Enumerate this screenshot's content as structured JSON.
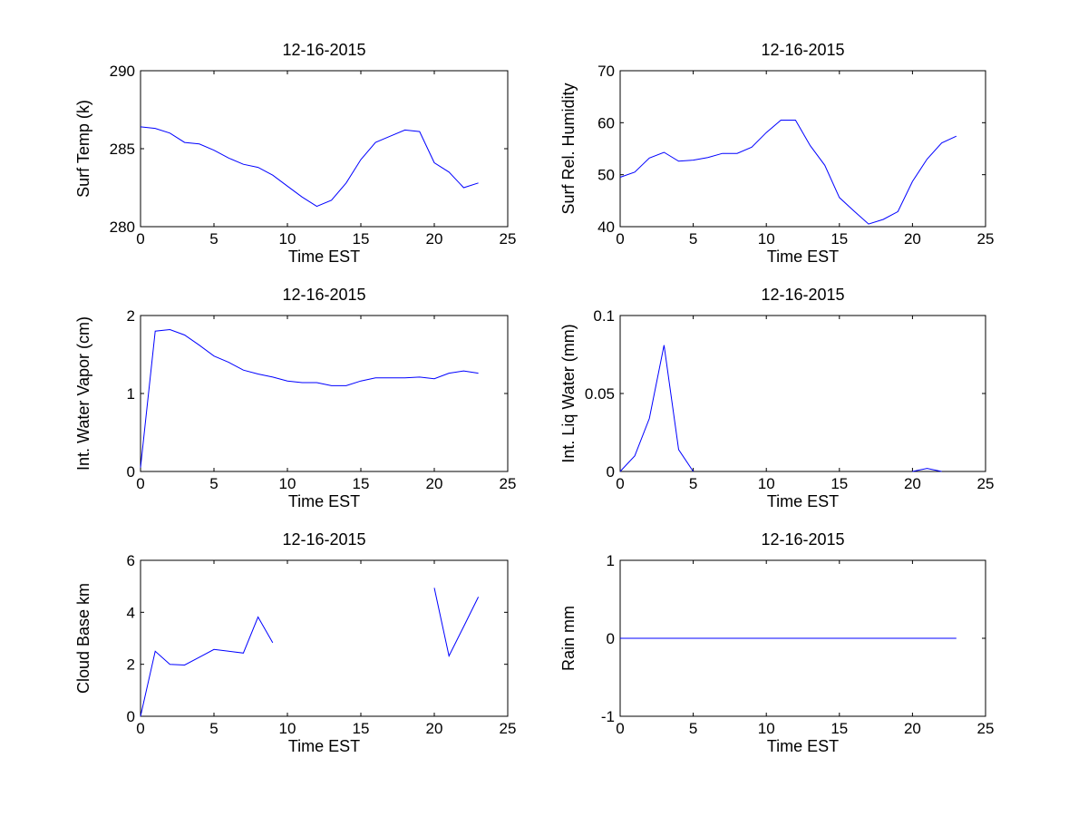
{
  "line_color": "#0000ff",
  "chart_data": [
    {
      "type": "line",
      "title": "12-16-2015",
      "xlabel": "Time EST",
      "ylabel": "Surf Temp (k)",
      "xlim": [
        0,
        25
      ],
      "ylim": [
        280,
        290
      ],
      "xticks": [
        0,
        5,
        10,
        15,
        20,
        25
      ],
      "yticks": [
        280,
        285,
        290
      ],
      "ytick_labels": [
        "280",
        "285",
        "290"
      ],
      "x": [
        0,
        1,
        2,
        3,
        4,
        5,
        6,
        7,
        8,
        9,
        10,
        11,
        12,
        13,
        14,
        15,
        16,
        17,
        18,
        19,
        20,
        21,
        22,
        23
      ],
      "y": [
        286.4,
        286.3,
        286.0,
        285.4,
        285.3,
        284.9,
        284.4,
        284.0,
        283.8,
        283.3,
        282.6,
        281.9,
        281.3,
        281.7,
        282.8,
        284.3,
        285.4,
        285.8,
        286.2,
        286.1,
        284.1,
        283.5,
        282.5,
        282.8
      ]
    },
    {
      "type": "line",
      "title": "12-16-2015",
      "xlabel": "Time EST",
      "ylabel": "Surf Rel. Humidity",
      "xlim": [
        0,
        25
      ],
      "ylim": [
        40,
        70
      ],
      "xticks": [
        0,
        5,
        10,
        15,
        20,
        25
      ],
      "yticks": [
        40,
        50,
        60,
        70
      ],
      "ytick_labels": [
        "40",
        "50",
        "60",
        "70"
      ],
      "x": [
        0,
        1,
        2,
        3,
        4,
        5,
        6,
        7,
        8,
        9,
        10,
        11,
        12,
        13,
        14,
        15,
        16,
        17,
        18,
        19,
        20,
        21,
        22,
        23
      ],
      "y": [
        49.5,
        50.5,
        53.2,
        54.3,
        52.6,
        52.8,
        53.3,
        54.1,
        54.1,
        55.3,
        58.1,
        60.5,
        60.5,
        55.6,
        51.8,
        45.6,
        43.0,
        40.5,
        41.4,
        42.9,
        48.7,
        53.0,
        56.1,
        57.4
      ]
    },
    {
      "type": "line",
      "title": "12-16-2015",
      "xlabel": "Time EST",
      "ylabel": "Int. Water Vapor (cm)",
      "xlim": [
        0,
        25
      ],
      "ylim": [
        0,
        2
      ],
      "xticks": [
        0,
        5,
        10,
        15,
        20,
        25
      ],
      "yticks": [
        0,
        1,
        2
      ],
      "ytick_labels": [
        "0",
        "1",
        "2"
      ],
      "x": [
        0,
        1,
        2,
        3,
        4,
        5,
        6,
        7,
        8,
        9,
        10,
        11,
        12,
        13,
        14,
        15,
        16,
        17,
        18,
        19,
        20,
        21,
        22,
        23
      ],
      "y": [
        0.05,
        1.8,
        1.82,
        1.75,
        1.62,
        1.48,
        1.4,
        1.3,
        1.25,
        1.21,
        1.16,
        1.14,
        1.14,
        1.1,
        1.1,
        1.16,
        1.2,
        1.2,
        1.2,
        1.21,
        1.19,
        1.26,
        1.29,
        1.26
      ]
    },
    {
      "type": "line",
      "title": "12-16-2015",
      "xlabel": "Time EST",
      "ylabel": "Int. Liq Water (mm)",
      "xlim": [
        0,
        25
      ],
      "ylim": [
        0,
        0.1
      ],
      "xticks": [
        0,
        5,
        10,
        15,
        20,
        25
      ],
      "yticks": [
        0,
        0.05,
        0.1
      ],
      "ytick_labels": [
        "0",
        "0.05",
        "0.1"
      ],
      "x": [
        0,
        1,
        2,
        3,
        4,
        5,
        6,
        7,
        8,
        9,
        10,
        11,
        12,
        13,
        14,
        15,
        16,
        17,
        18,
        19,
        20,
        21,
        22,
        23
      ],
      "y": [
        0,
        0.01,
        0.034,
        0.081,
        0.014,
        0,
        null,
        null,
        null,
        null,
        null,
        null,
        null,
        null,
        null,
        null,
        null,
        null,
        null,
        null,
        0,
        0.002,
        0,
        null
      ]
    },
    {
      "type": "line",
      "title": "12-16-2015",
      "xlabel": "Time EST",
      "ylabel": "Cloud Base km",
      "xlim": [
        0,
        25
      ],
      "ylim": [
        0,
        6
      ],
      "xticks": [
        0,
        5,
        10,
        15,
        20,
        25
      ],
      "yticks": [
        0,
        2,
        4,
        6
      ],
      "ytick_labels": [
        "0",
        "2",
        "4",
        "6"
      ],
      "x": [
        0,
        1,
        2,
        3,
        4,
        5,
        6,
        7,
        8,
        9,
        10,
        11,
        12,
        13,
        14,
        15,
        16,
        17,
        18,
        19,
        20,
        21,
        22,
        23
      ],
      "y": [
        0,
        2.5,
        2.0,
        1.97,
        2.27,
        2.57,
        2.5,
        2.43,
        3.82,
        2.83,
        null,
        null,
        null,
        null,
        null,
        null,
        null,
        null,
        null,
        null,
        4.94,
        2.32,
        3.45,
        4.59
      ]
    },
    {
      "type": "line",
      "title": "12-16-2015",
      "xlabel": "Time EST",
      "ylabel": "Rain mm",
      "xlim": [
        0,
        25
      ],
      "ylim": [
        -1,
        1
      ],
      "xticks": [
        0,
        5,
        10,
        15,
        20,
        25
      ],
      "yticks": [
        -1,
        0,
        1
      ],
      "ytick_labels": [
        "-1",
        "0",
        "1"
      ],
      "x": [
        0,
        1,
        2,
        3,
        4,
        5,
        6,
        7,
        8,
        9,
        10,
        11,
        12,
        13,
        14,
        15,
        16,
        17,
        18,
        19,
        20,
        21,
        22,
        23
      ],
      "y": [
        0,
        0,
        0,
        0,
        0,
        0,
        0,
        0,
        0,
        0,
        0,
        0,
        0,
        0,
        0,
        0,
        0,
        0,
        0,
        0,
        0,
        0,
        0,
        0
      ]
    }
  ]
}
